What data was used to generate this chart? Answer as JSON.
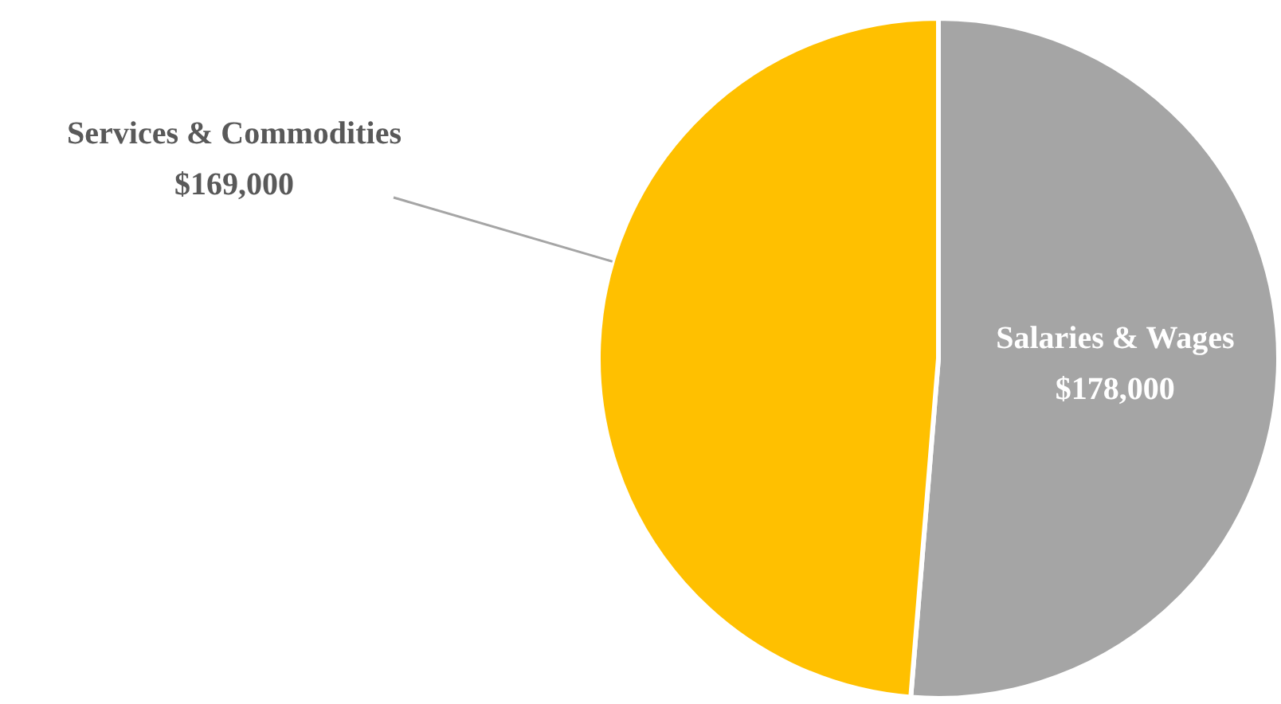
{
  "chart_data": {
    "type": "pie",
    "categories": [
      "Salaries & Wages",
      "Services & Commodities"
    ],
    "values": [
      178000,
      169000
    ],
    "value_labels": [
      "$178,000",
      "$169,000"
    ],
    "colors": [
      "#a5a5a5",
      "#ffc000"
    ],
    "legend": false
  }
}
